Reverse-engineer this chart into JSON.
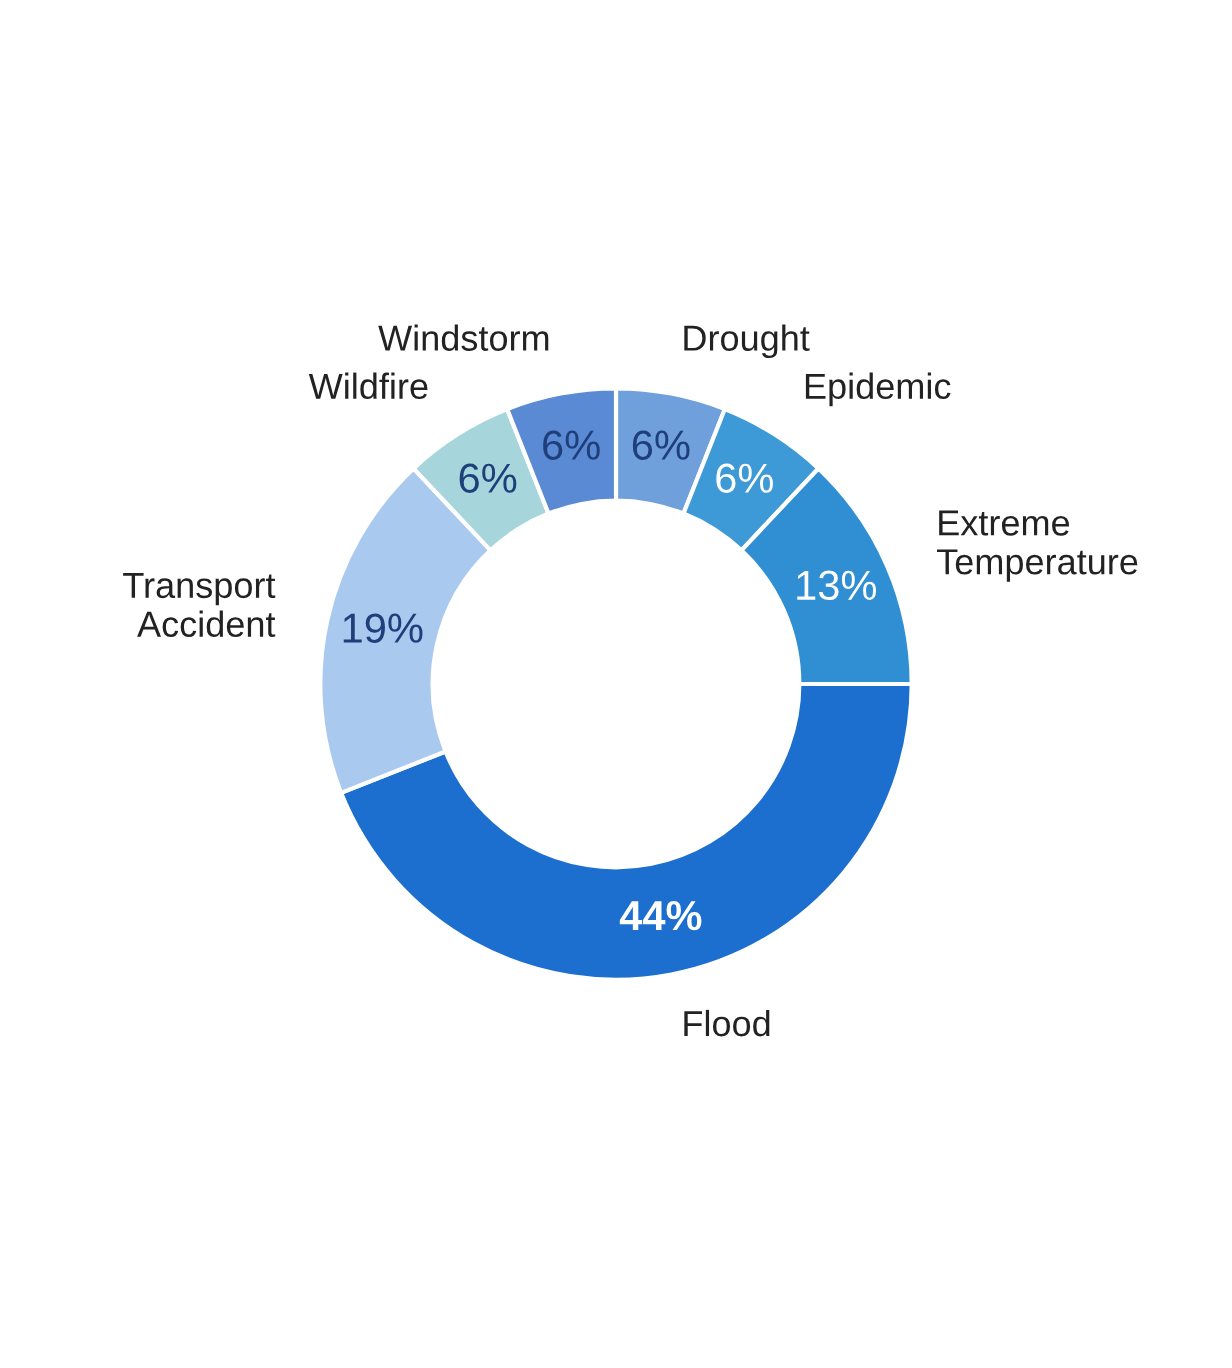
{
  "chart_data": {
    "type": "donut",
    "categories": [
      "Drought",
      "Epidemic",
      "Extreme Temperature",
      "Flood",
      "Transport Accident",
      "Wildfire",
      "Windstorm"
    ],
    "values": [
      6,
      6,
      13,
      44,
      19,
      6,
      6
    ],
    "value_labels": [
      "6%",
      "6%",
      "13%",
      "44%",
      "19%",
      "6%",
      "6%"
    ],
    "colors": [
      "#6fa0dc",
      "#3d9ad6",
      "#2f8fd2",
      "#1c6fce",
      "#a9c9ee",
      "#a6d5dc",
      "#5b8ad4"
    ],
    "legend": false
  }
}
